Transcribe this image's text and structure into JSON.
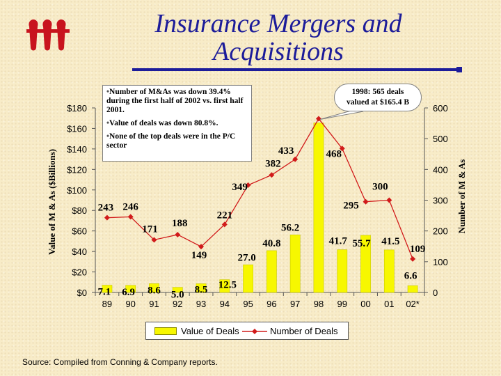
{
  "header": {
    "title_line1": "Insurance Mergers and",
    "title_line2": "Acquisitions",
    "logo": "iii-logo",
    "accent_color": "#1c1c9a",
    "logo_color": "#c8141e"
  },
  "notes": [
    "Number of M&As was down 39.4% during the first half of 2002 vs. first half 2001.",
    "Value of deals was down 80.8%.",
    "None of the top deals were in the P/C sector"
  ],
  "callout": {
    "line1": "1998: 565 deals",
    "line2": "valued at $165.4 B"
  },
  "legend": {
    "bar": "Value of Deals",
    "line": "Number of Deals"
  },
  "source": "Source:  Compiled from Conning & Company reports.",
  "chart_data": {
    "type": "bar",
    "categories": [
      "89",
      "90",
      "91",
      "92",
      "93",
      "94",
      "95",
      "96",
      "97",
      "98",
      "99",
      "00",
      "01",
      "02*"
    ],
    "ylabel": "Value of M & As ($Billions)",
    "y2label": "Number of M & As",
    "ylim": [
      0,
      180
    ],
    "y2lim": [
      0,
      600
    ],
    "yticks": [
      "$0",
      "$20",
      "$40",
      "$60",
      "$80",
      "$100",
      "$120",
      "$140",
      "$160",
      "$180"
    ],
    "y2ticks": [
      "0",
      "100",
      "200",
      "300",
      "400",
      "500",
      "600"
    ],
    "grid": false,
    "series": [
      {
        "name": "Value of Deals",
        "kind": "bar",
        "axis": "left",
        "color": "#f7f700",
        "values": [
          7.1,
          6.9,
          8.6,
          5.0,
          8.5,
          12.5,
          27.0,
          40.8,
          56.2,
          165.4,
          41.7,
          55.7,
          41.5,
          6.6
        ],
        "labels": [
          "7.1",
          "6.9",
          "8.6",
          "5.0",
          "8.5",
          "12.5",
          "27.0",
          "40.8",
          "56.2",
          "",
          "41.7",
          "55.7",
          "41.5",
          "6.6"
        ]
      },
      {
        "name": "Number of Deals",
        "kind": "line",
        "axis": "right",
        "color": "#d11b1b",
        "values": [
          243,
          246,
          171,
          188,
          149,
          221,
          349,
          382,
          433,
          565,
          468,
          295,
          300,
          109
        ],
        "labels": [
          "243",
          "246",
          "171",
          "188",
          "149",
          "221",
          "349",
          "382",
          "433",
          "",
          "468",
          "295",
          "300",
          "109"
        ]
      }
    ]
  }
}
